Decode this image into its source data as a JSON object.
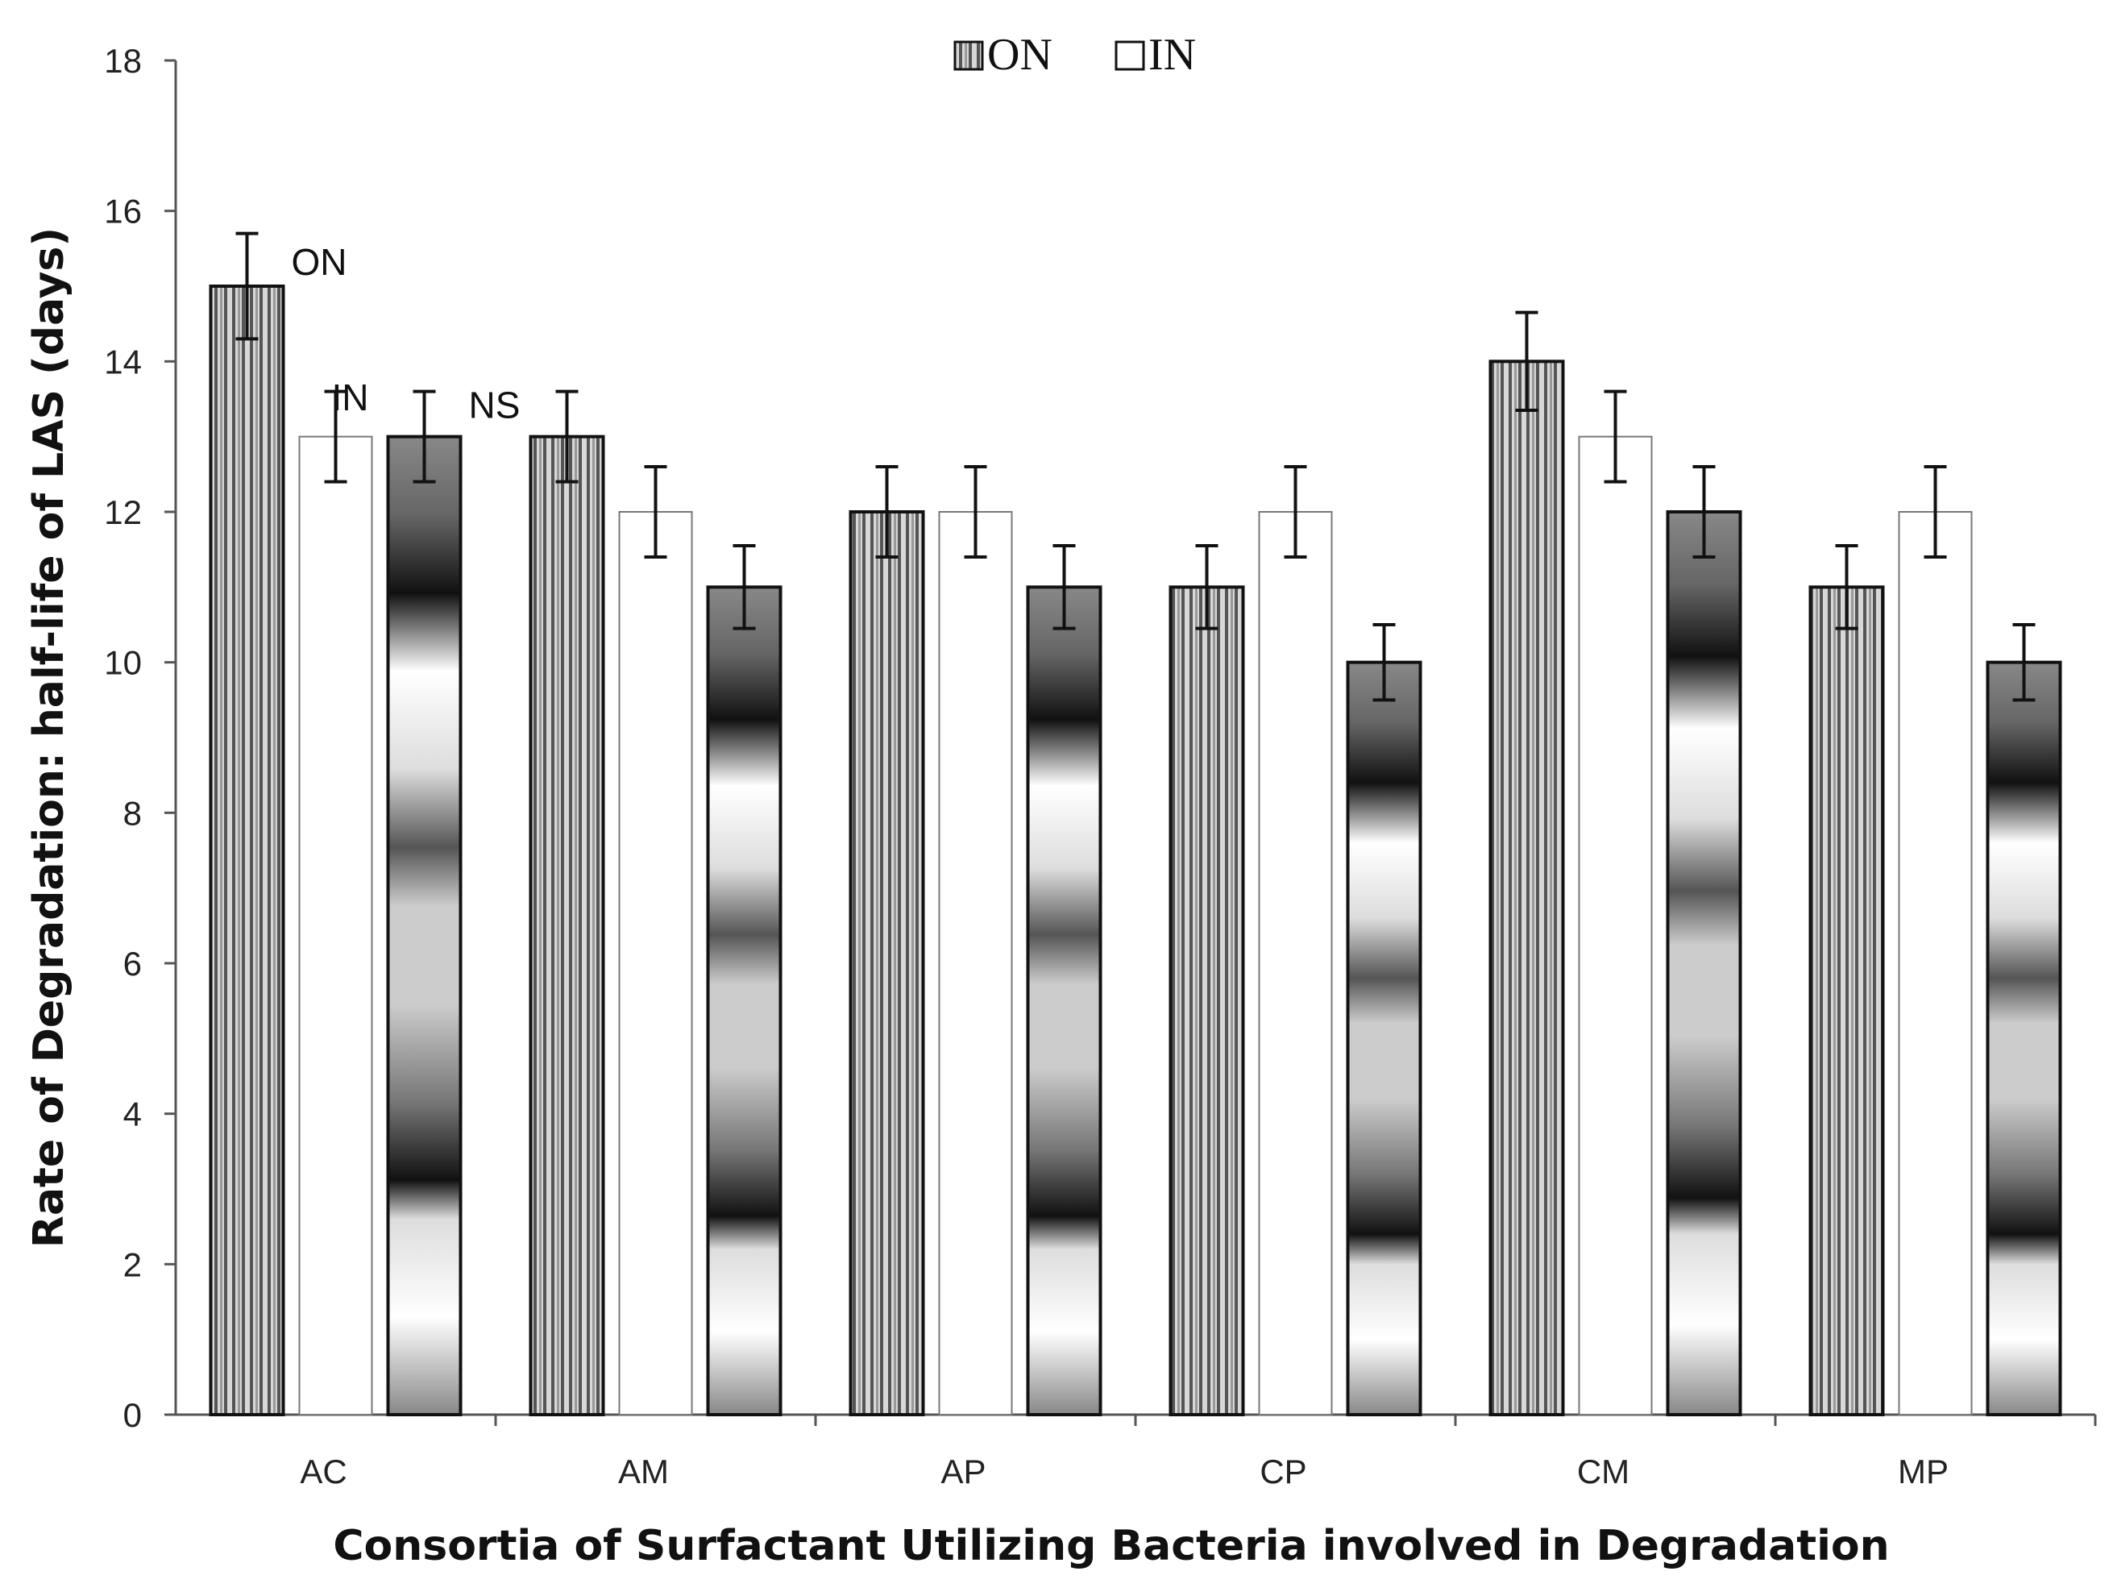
{
  "chart_data": {
    "type": "bar",
    "title": "",
    "xlabel": "Consortia of Surfactant Utilizing Bacteria involved in Degradation",
    "ylabel": "Rate of Degradation: half-life of LAS (days)",
    "ylim": [
      0,
      18
    ],
    "yticks": [
      0,
      2,
      4,
      6,
      8,
      10,
      12,
      14,
      16,
      18
    ],
    "grid": false,
    "legend_position": "top-center",
    "categories": [
      "AC",
      "AM",
      "AP",
      "CP",
      "CM",
      "MP"
    ],
    "series": [
      {
        "name": "ON",
        "pattern": "vertical-stripes",
        "values": [
          15,
          13,
          12,
          11,
          14,
          11
        ],
        "errors": [
          0.7,
          0.6,
          0.6,
          0.55,
          0.65,
          0.55
        ]
      },
      {
        "name": "IN",
        "pattern": "white",
        "values": [
          13,
          12,
          12,
          12,
          13,
          12
        ],
        "errors": [
          0.6,
          0.6,
          0.6,
          0.6,
          0.6,
          0.6
        ]
      },
      {
        "name": "",
        "pattern": "gradient-bands",
        "values": [
          13,
          11,
          11,
          10,
          12,
          10
        ],
        "errors": [
          0.6,
          0.55,
          0.55,
          0.5,
          0.6,
          0.5
        ]
      }
    ],
    "annotations": [
      "ON",
      "IN",
      "NS"
    ]
  }
}
